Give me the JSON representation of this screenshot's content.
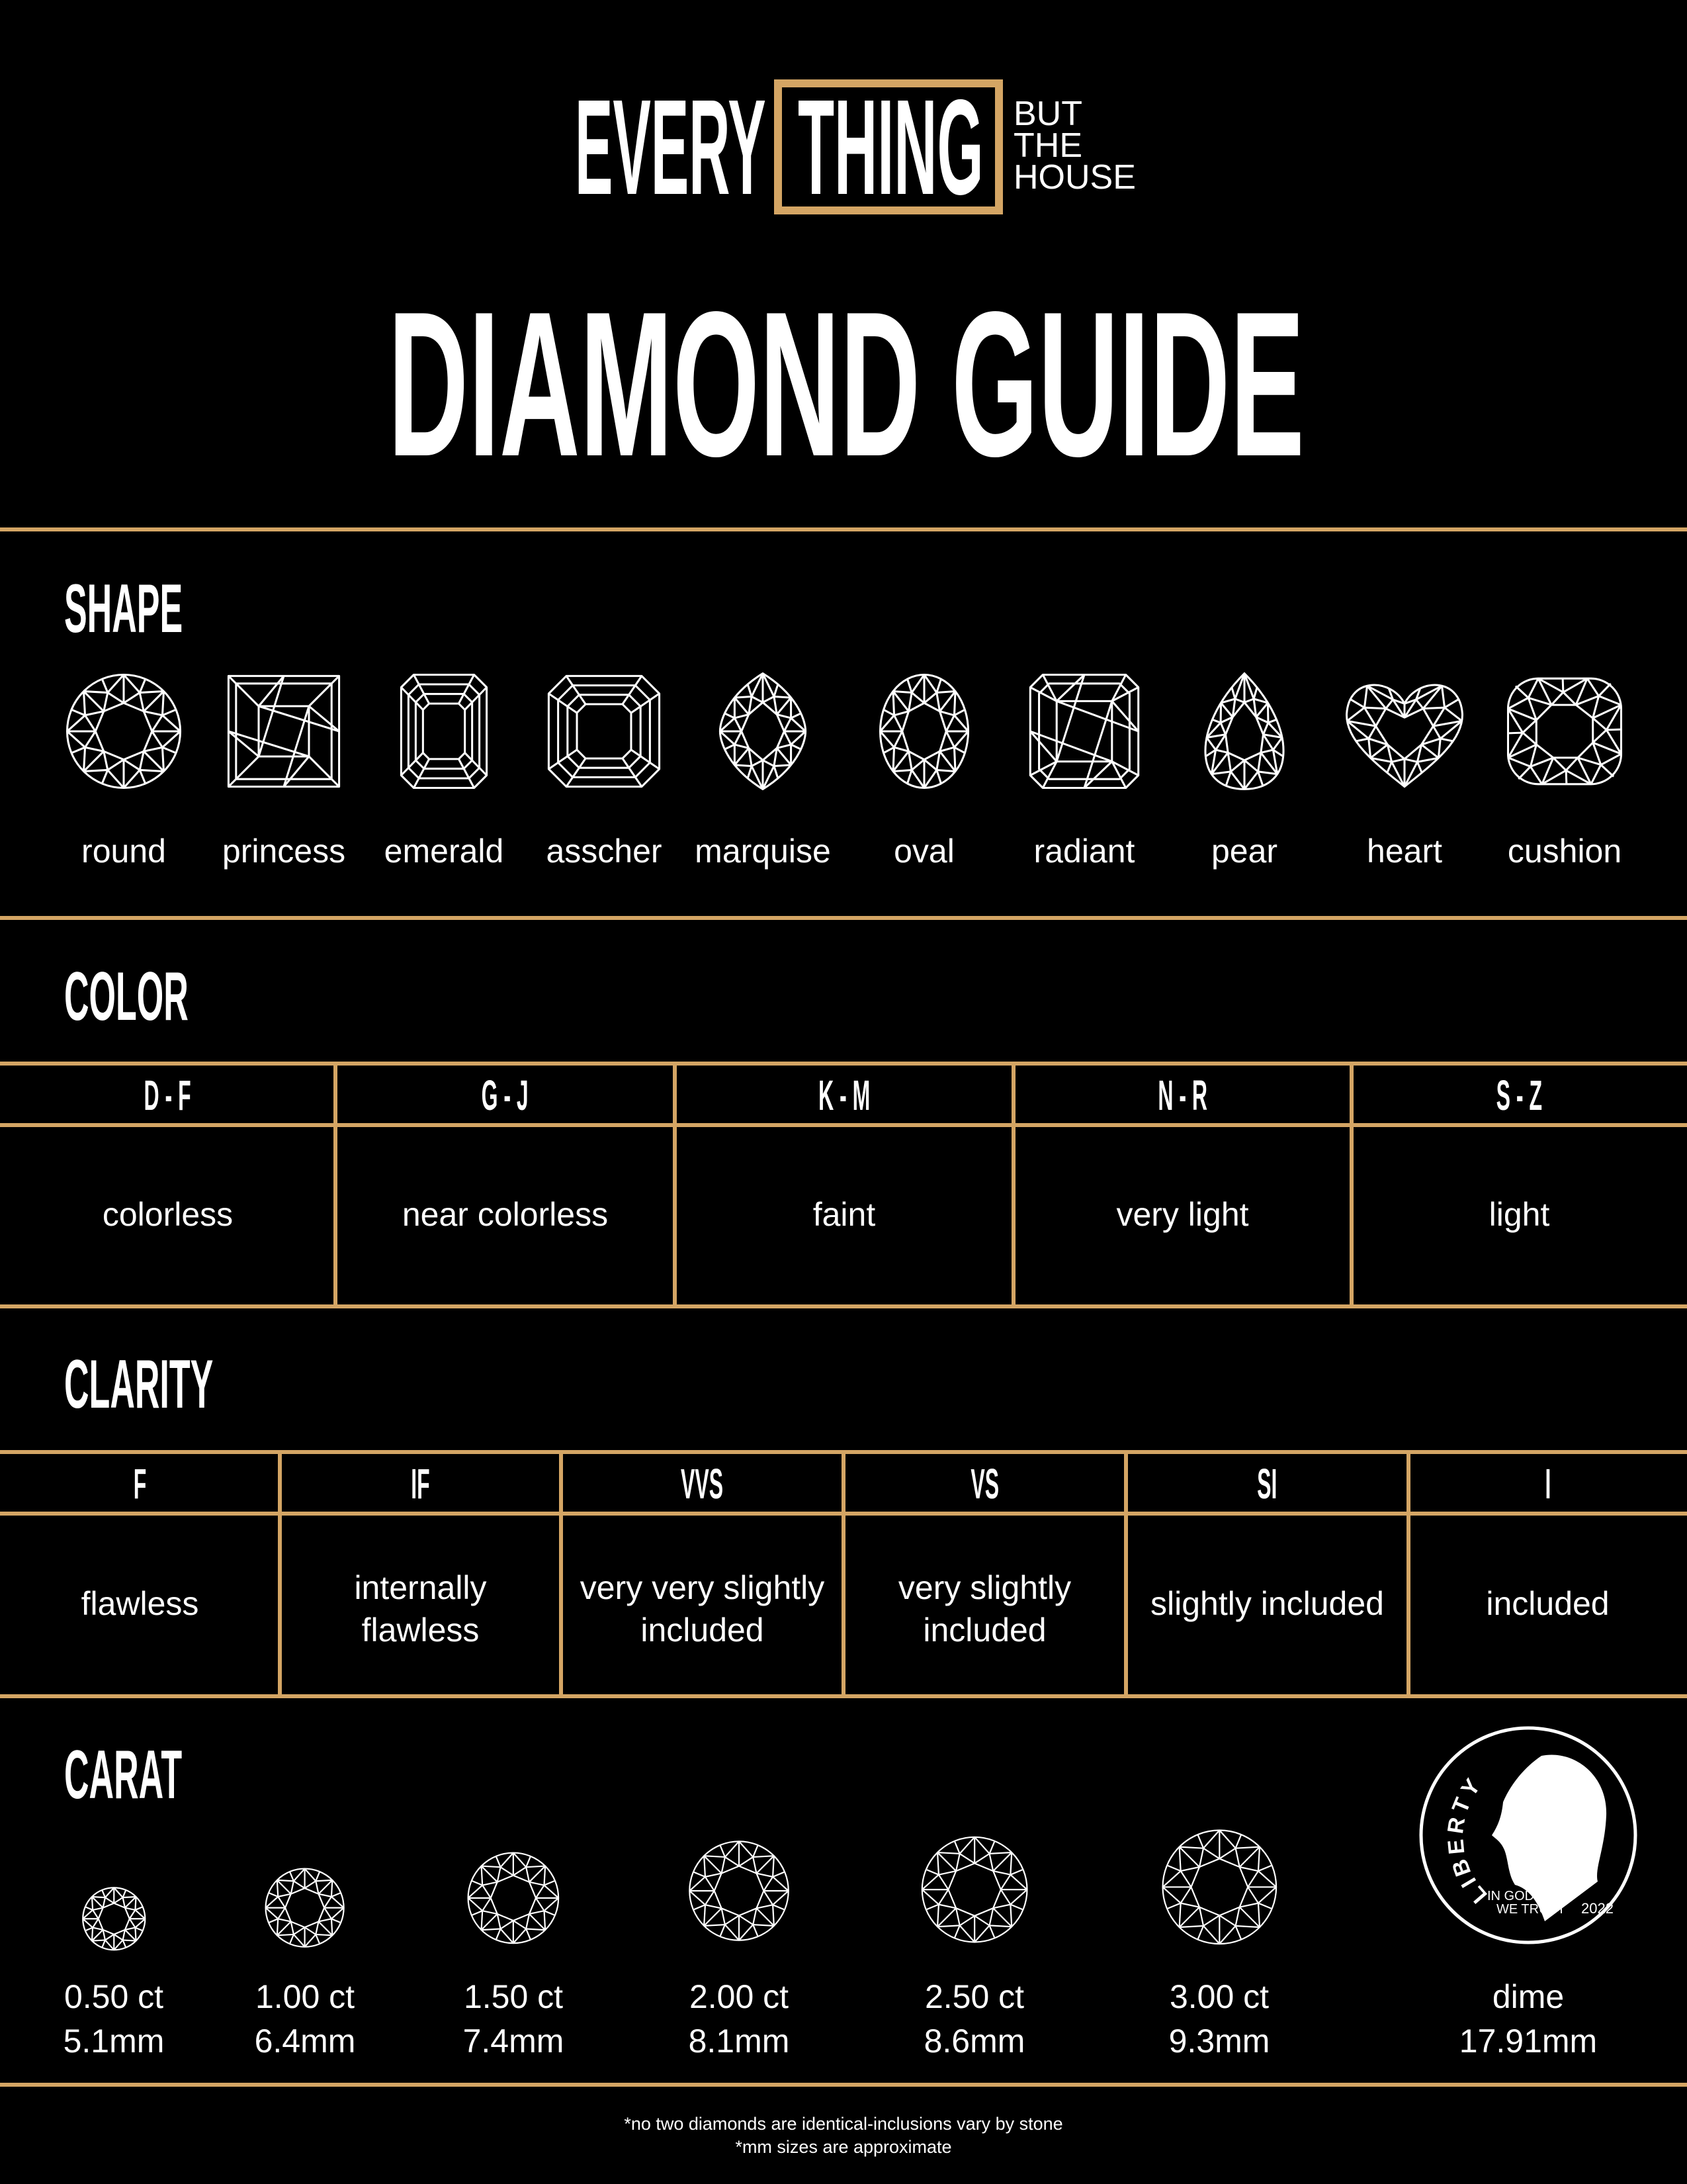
{
  "brand": {
    "word1": "EVERY",
    "word2": "THING",
    "tagline": [
      "BUT",
      "THE",
      "HOUSE"
    ],
    "accent": "#d4a564"
  },
  "title": "DIAMOND GUIDE",
  "shape": {
    "heading": "SHAPE",
    "items": [
      {
        "label": "round",
        "icon": "round-diamond-icon"
      },
      {
        "label": "princess",
        "icon": "princess-diamond-icon"
      },
      {
        "label": "emerald",
        "icon": "emerald-diamond-icon"
      },
      {
        "label": "asscher",
        "icon": "asscher-diamond-icon"
      },
      {
        "label": "marquise",
        "icon": "marquise-diamond-icon"
      },
      {
        "label": "oval",
        "icon": "oval-diamond-icon"
      },
      {
        "label": "radiant",
        "icon": "radiant-diamond-icon"
      },
      {
        "label": "pear",
        "icon": "pear-diamond-icon"
      },
      {
        "label": "heart",
        "icon": "heart-diamond-icon"
      },
      {
        "label": "cushion",
        "icon": "cushion-diamond-icon"
      }
    ]
  },
  "color": {
    "heading": "COLOR",
    "columns": [
      {
        "grade": "D - F",
        "desc": "colorless"
      },
      {
        "grade": "G - J",
        "desc": "near colorless"
      },
      {
        "grade": "K - M",
        "desc": "faint"
      },
      {
        "grade": "N - R",
        "desc": "very light"
      },
      {
        "grade": "S - Z",
        "desc": "light"
      }
    ]
  },
  "clarity": {
    "heading": "CLARITY",
    "columns": [
      {
        "grade": "F",
        "desc": [
          "flawless"
        ]
      },
      {
        "grade": "IF",
        "desc": [
          "internally",
          "flawless"
        ]
      },
      {
        "grade": "VVS",
        "desc": [
          "very very slightly",
          "included"
        ]
      },
      {
        "grade": "VS",
        "desc": [
          "very slightly",
          "included"
        ]
      },
      {
        "grade": "SI",
        "desc": [
          "slightly included"
        ]
      },
      {
        "grade": "I",
        "desc": [
          "included"
        ]
      }
    ]
  },
  "carat": {
    "heading": "CARAT",
    "items": [
      {
        "weight": "0.50 ct",
        "size": "5.1mm",
        "diameter_mm": 5.1
      },
      {
        "weight": "1.00 ct",
        "size": "6.4mm",
        "diameter_mm": 6.4
      },
      {
        "weight": "1.50 ct",
        "size": "7.4mm",
        "diameter_mm": 7.4
      },
      {
        "weight": "2.00 ct",
        "size": "8.1mm",
        "diameter_mm": 8.1
      },
      {
        "weight": "2.50 ct",
        "size": "8.6mm",
        "diameter_mm": 8.6
      },
      {
        "weight": "3.00 ct",
        "size": "9.3mm",
        "diameter_mm": 9.3
      }
    ],
    "dime": {
      "label": "dime",
      "size": "17.91mm",
      "coin_text": {
        "liberty": "LIBERTY",
        "motto1": "IN GOD",
        "motto2": "WE TRUST",
        "year": "2022"
      }
    }
  },
  "footnotes": [
    "*no two diamonds are identical-inclusions vary by stone",
    "*mm sizes are approximate"
  ]
}
